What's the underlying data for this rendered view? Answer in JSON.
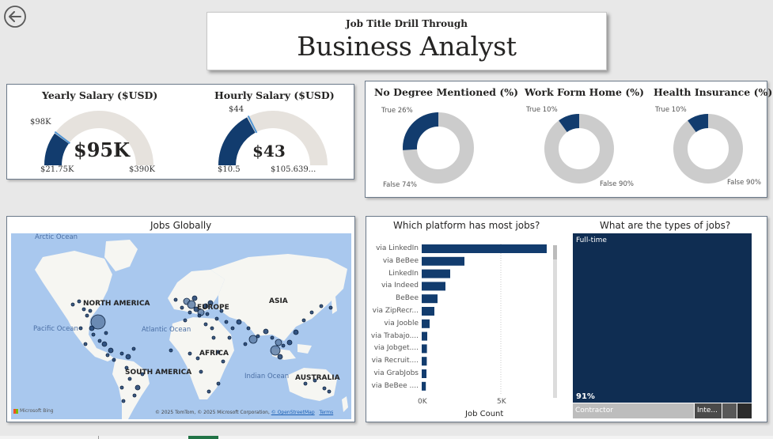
{
  "header": {
    "subtitle": "Job Title Drill Through",
    "title": "Business Analyst"
  },
  "salary": {
    "yearly": {
      "title": "Yearly Salary ($USD)",
      "value_label": "$95K",
      "target_label": "$98K",
      "min_label": "$21.75K",
      "max_label": "$390K",
      "value": 95000,
      "target": 98000,
      "min": 21750,
      "max": 390000
    },
    "hourly": {
      "title": "Hourly Salary ($USD)",
      "value_label": "$43",
      "target_label": "$44",
      "min_label": "$10.5",
      "max_label": "$105.639...",
      "value": 43,
      "target": 44,
      "min": 10.5,
      "max": 105.639
    }
  },
  "percent_donuts": [
    {
      "title": "No Degree Mentioned (%)",
      "true_label": "True 26%",
      "false_label": "False 74%",
      "true_pct": 26
    },
    {
      "title": "Work Form Home (%)",
      "true_label": "True 10%",
      "false_label": "False 90%",
      "true_pct": 10
    },
    {
      "title": "Health Insurance (%)",
      "true_label": "True 10%",
      "false_label": "False 90%",
      "true_pct": 10
    }
  ],
  "map": {
    "title": "Jobs Globally",
    "continents": [
      "NORTH AMERICA",
      "EUROPE",
      "ASIA",
      "AFRICA",
      "SOUTH AMERICA",
      "AUSTRALIA"
    ],
    "oceans": [
      "Arctic Ocean",
      "Pacific Ocean",
      "Atlantic Ocean",
      "Indian Ocean"
    ],
    "logo": "Microsoft Bing",
    "attribution": "© 2025 TomTom, © 2025 Microsoft Corporation,",
    "osm_link": "© OpenStreetMap",
    "terms_link": "Terms"
  },
  "platforms": {
    "title": "Which platform has most jobs?",
    "xlabel": "Job Count",
    "ticks": [
      "0K",
      "5K"
    ]
  },
  "job_types": {
    "title": "What are the types of jobs?",
    "full_time_label": "Full-time",
    "full_time_pct": "91%",
    "contractor_label": "Contractor",
    "intern_label": "Inte..."
  },
  "colors": {
    "primary": "#123c6e",
    "gauge_track": "#e6e2dd",
    "donut_track": "#cccccc",
    "ocean": "#a9c8ee",
    "land": "#f6f6f2"
  },
  "chart_data": [
    {
      "type": "bar",
      "title": "Which platform has most jobs?",
      "xlabel": "Job Count",
      "categories": [
        "via LinkedIn",
        "via BeBee",
        "LinkedIn",
        "via Indeed",
        "BeBee",
        "via ZipRecr...",
        "via Jooble",
        "via Trabajo....",
        "via Jobget....",
        "via Recruit....",
        "via GrabJobs",
        "via BeBee ...."
      ],
      "values": [
        7900,
        2700,
        1800,
        1500,
        1000,
        800,
        500,
        350,
        330,
        320,
        300,
        260
      ],
      "xlim": [
        0,
        8000
      ]
    }
  ]
}
